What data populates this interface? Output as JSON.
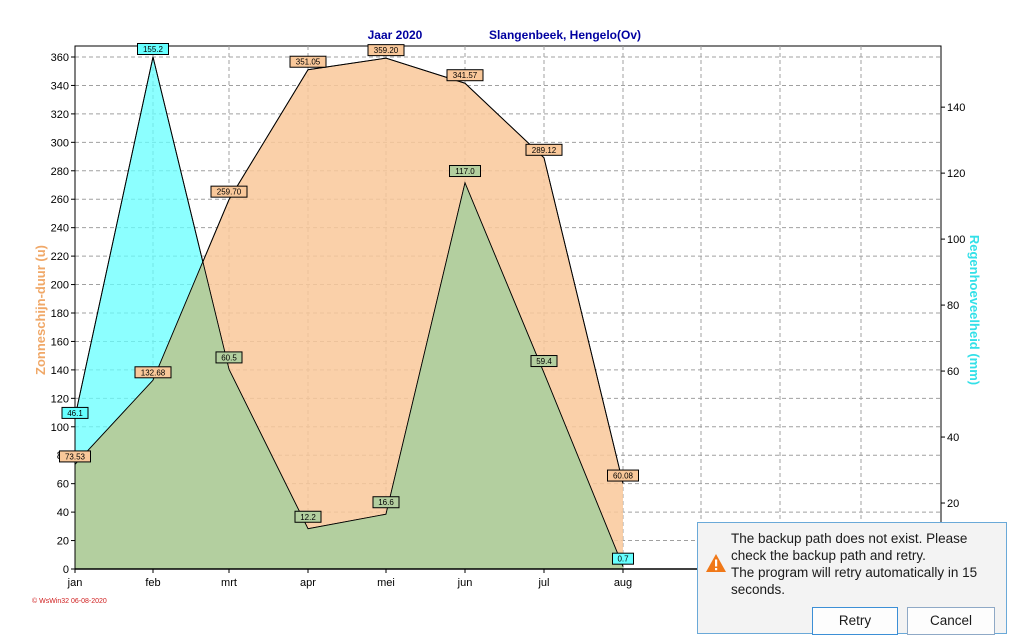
{
  "chart_data": {
    "type": "area",
    "title": "Jaar  2020",
    "subtitle": "Slangenbeek, Hengelo(Ov)",
    "categories": [
      "jan",
      "feb",
      "mrt",
      "apr",
      "mei",
      "jun",
      "jul",
      "aug"
    ],
    "ylabel_left": "Zonneschijn-duur  (u)",
    "ylabel_right": "Regenhoeveelheid  (mm)",
    "ylim_left": [
      0,
      360
    ],
    "ylim_right": [
      0,
      155.2
    ],
    "yticks_left": [
      0,
      20,
      40,
      60,
      80,
      100,
      120,
      140,
      160,
      180,
      200,
      220,
      240,
      260,
      280,
      300,
      320,
      340,
      360
    ],
    "yticks_right": [
      20,
      40,
      60,
      80,
      100,
      120,
      140
    ],
    "grid": true,
    "series": [
      {
        "name": "Zonneschijn-duur",
        "axis": "left",
        "color": "#f9c89a",
        "values": [
          73.53,
          132.68,
          259.7,
          351.05,
          359.2,
          341.57,
          289.12,
          60.08
        ],
        "labels": [
          "73.53",
          "132.68",
          "259.70",
          "351.05",
          "359.20",
          "341.57",
          "289.12",
          "60.08"
        ]
      },
      {
        "name": "Regenhoeveelheid",
        "axis": "right",
        "color": "#66ffff",
        "values": [
          46.1,
          155.2,
          60.5,
          12.2,
          16.6,
          117.0,
          59.4,
          0.7
        ],
        "labels": [
          "46.1",
          "155.2",
          "60.5",
          "12.2",
          "16.6",
          "117.0",
          "59.4",
          "0.7"
        ]
      }
    ],
    "footer": "© WsWin32  06-08-2020"
  },
  "notification": {
    "line1": "The backup path does not exist. Please",
    "line2": "check the backup path and retry.",
    "line3": "The program will retry automatically in 15",
    "line4": "seconds.",
    "retry_label": "Retry",
    "cancel_label": "Cancel"
  }
}
